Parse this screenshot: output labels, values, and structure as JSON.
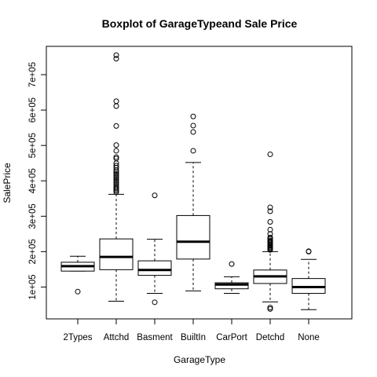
{
  "chart_data": {
    "type": "boxplot",
    "title": "Boxplot of GarageTypeand Sale Price",
    "xlabel": "GarageType",
    "ylabel": "SalePrice",
    "ylim": [
      10000,
      780000
    ],
    "yticks": [
      100000,
      200000,
      300000,
      400000,
      500000,
      600000,
      700000
    ],
    "ytick_labels": [
      "1e+05",
      "2e+05",
      "3e+05",
      "4e+05",
      "5e+05",
      "6e+05",
      "7e+05"
    ],
    "categories": [
      "2Types",
      "Attchd",
      "Basment",
      "BuiltIn",
      "CarPort",
      "Detchd",
      "None"
    ],
    "boxes": [
      {
        "category": "2Types",
        "whisker_low": 145000,
        "q1": 145000,
        "median": 159000,
        "q3": 170000,
        "whisker_high": 187000,
        "outliers": [
          87000
        ]
      },
      {
        "category": "Attchd",
        "whisker_low": 60000,
        "q1": 149000,
        "median": 185000,
        "q3": 236000,
        "whisker_high": 362000,
        "outliers": [
          368000,
          372000,
          376000,
          380000,
          385000,
          390000,
          395000,
          400000,
          405000,
          410000,
          415000,
          420000,
          425000,
          430000,
          437000,
          443000,
          450000,
          463000,
          467000,
          485000,
          501000,
          555000,
          611000,
          625000,
          745000,
          755000
        ]
      },
      {
        "category": "Basment",
        "whisker_low": 82000,
        "q1": 133000,
        "median": 148000,
        "q3": 174000,
        "whisker_high": 235000,
        "outliers": [
          57000,
          359000
        ]
      },
      {
        "category": "BuiltIn",
        "whisker_low": 89000,
        "q1": 179000,
        "median": 228000,
        "q3": 302000,
        "whisker_high": 452000,
        "outliers": [
          485000,
          538000,
          556000,
          582000
        ]
      },
      {
        "category": "CarPort",
        "whisker_low": 82000,
        "q1": 95000,
        "median": 107000,
        "q3": 112000,
        "whisker_high": 129000,
        "outliers": [
          165000
        ]
      },
      {
        "category": "Detchd",
        "whisker_low": 58000,
        "q1": 110000,
        "median": 130000,
        "q3": 148000,
        "whisker_high": 200000,
        "outliers": [
          38000,
          42000,
          205000,
          208000,
          211000,
          214000,
          217000,
          220000,
          223000,
          226000,
          229000,
          232000,
          236000,
          240000,
          250000,
          262000,
          284000,
          314000,
          325000,
          475000
        ]
      },
      {
        "category": "None",
        "whisker_low": 36000,
        "q1": 82000,
        "median": 100000,
        "q3": 124000,
        "whisker_high": 178000,
        "outliers": [
          200000,
          201000
        ]
      }
    ]
  }
}
